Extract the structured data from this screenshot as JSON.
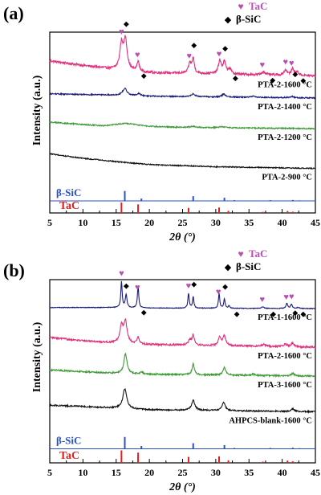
{
  "legend": {
    "tac_label": "TaC",
    "sic_label": "β-SiC",
    "tac_color": "#b94fb1",
    "sic_color": "#000000"
  },
  "colors": {
    "pink": "#e0327e",
    "navy": "#1c1c78",
    "green": "#3e9a36",
    "black": "#111111",
    "ref_blue": "#2b4fc8",
    "ref_red": "#e02020"
  },
  "chart_data": [
    {
      "panel_label": "(a)",
      "type": "line",
      "xlabel": "2θ (°)",
      "ylabel": "Intensity (a.u.)",
      "xlim": [
        5,
        45
      ],
      "xticks": [
        5,
        10,
        15,
        20,
        25,
        30,
        35,
        40,
        45
      ],
      "series": [
        {
          "name": "PTA-2-1600 °C",
          "color": "#e0327e",
          "noise": 0.018,
          "background": [
            [
              5,
              0.62
            ],
            [
              10,
              0.55
            ],
            [
              14,
              0.5
            ],
            [
              20,
              0.44
            ],
            [
              30,
              0.42
            ],
            [
              45,
              0.39
            ]
          ],
          "peaks": [
            [
              15.8,
              0.38,
              0.3
            ],
            [
              16.4,
              0.45,
              0.3
            ],
            [
              18.3,
              0.15,
              0.2
            ],
            [
              26.1,
              0.15,
              0.25
            ],
            [
              26.6,
              0.22,
              0.2
            ],
            [
              30.6,
              0.2,
              0.25
            ],
            [
              31.3,
              0.18,
              0.25
            ],
            [
              32.1,
              0.08,
              0.25
            ],
            [
              37.2,
              0.05,
              0.3
            ],
            [
              40.5,
              0.08,
              0.3
            ],
            [
              41.6,
              0.1,
              0.25
            ],
            [
              42.3,
              0.05,
              0.25
            ]
          ]
        },
        {
          "name": "PTA-2-1400 °C",
          "color": "#1c1c78",
          "noise": 0.01,
          "background": [
            [
              5,
              0.6
            ],
            [
              14,
              0.58
            ],
            [
              20,
              0.56
            ],
            [
              45,
              0.53
            ]
          ],
          "peaks": [
            [
              16.3,
              0.12,
              0.4
            ],
            [
              18.4,
              0.04,
              0.3
            ],
            [
              26.6,
              0.05,
              0.3
            ],
            [
              31.2,
              0.05,
              0.3
            ],
            [
              35.6,
              0.02,
              0.3
            ],
            [
              41.5,
              0.02,
              0.3
            ]
          ]
        },
        {
          "name": "PTA-2-1200 °C",
          "color": "#3e9a36",
          "noise": 0.01,
          "background": [
            [
              5,
              0.52
            ],
            [
              10,
              0.48
            ],
            [
              13,
              0.46
            ],
            [
              16.5,
              0.5
            ],
            [
              20,
              0.45
            ],
            [
              25,
              0.43
            ],
            [
              45,
              0.41
            ]
          ],
          "peaks": [
            [
              26.5,
              0.02,
              0.6
            ],
            [
              31.0,
              0.02,
              0.6
            ]
          ]
        },
        {
          "name": "PTA-2-900 °C",
          "color": "#111111",
          "noise": 0.009,
          "background": [
            [
              5,
              0.48
            ],
            [
              10,
              0.4
            ],
            [
              16,
              0.33
            ],
            [
              20,
              0.29
            ],
            [
              25,
              0.27
            ],
            [
              30,
              0.25
            ],
            [
              45,
              0.22
            ]
          ],
          "peaks": []
        }
      ],
      "reference": {
        "sic": {
          "label": "β-SiC",
          "positions": [
            16.3,
            18.8,
            26.6,
            31.3,
            32.8,
            38.2,
            41.6,
            42.6
          ],
          "heights": [
            0.95,
            0.22,
            0.45,
            0.3,
            0.07,
            0.07,
            0.09,
            0.05
          ]
        },
        "tac": {
          "label": "TaC",
          "positions": [
            15.8,
            18.3,
            25.9,
            30.5,
            31.9,
            37.1,
            40.8,
            41.6
          ],
          "heights": [
            1.0,
            0.82,
            0.48,
            0.52,
            0.2,
            0.1,
            0.18,
            0.12
          ]
        }
      },
      "markers": {
        "tac": [
          15.8,
          18.2,
          26.0,
          30.5,
          37.0,
          40.5,
          41.4
        ],
        "sic": [
          16.4,
          18.8,
          26.6,
          31.3,
          32.6,
          38.2,
          41.6,
          42.8
        ]
      }
    },
    {
      "panel_label": "(b)",
      "type": "line",
      "xlabel": "2θ (°)",
      "ylabel": "Intensity (a.u.)",
      "xlim": [
        5,
        45
      ],
      "xticks": [
        5,
        10,
        15,
        20,
        25,
        30,
        35,
        40,
        45
      ],
      "series": [
        {
          "name": "PTA-1-1600 °C",
          "color": "#1c1c78",
          "noise": 0.006,
          "background": [
            [
              5,
              0.42
            ],
            [
              14,
              0.42
            ],
            [
              20,
              0.41
            ],
            [
              45,
              0.4
            ]
          ],
          "peaks": [
            [
              15.8,
              0.5,
              0.12
            ],
            [
              16.5,
              0.25,
              0.15
            ],
            [
              18.3,
              0.42,
              0.12
            ],
            [
              25.9,
              0.28,
              0.12
            ],
            [
              26.6,
              0.22,
              0.12
            ],
            [
              30.5,
              0.28,
              0.12
            ],
            [
              31.3,
              0.18,
              0.12
            ],
            [
              32.0,
              0.05,
              0.12
            ],
            [
              37.1,
              0.03,
              0.2
            ],
            [
              40.7,
              0.1,
              0.15
            ],
            [
              41.4,
              0.08,
              0.15
            ],
            [
              42.4,
              0.02,
              0.2
            ]
          ]
        },
        {
          "name": "PTA-2-1600 °C",
          "color": "#e0327e",
          "noise": 0.014,
          "background": [
            [
              5,
              0.5
            ],
            [
              10,
              0.45
            ],
            [
              14,
              0.42
            ],
            [
              20,
              0.39
            ],
            [
              45,
              0.35
            ]
          ],
          "peaks": [
            [
              15.8,
              0.25,
              0.3
            ],
            [
              16.4,
              0.32,
              0.3
            ],
            [
              18.3,
              0.1,
              0.2
            ],
            [
              26.1,
              0.08,
              0.25
            ],
            [
              26.6,
              0.15,
              0.2
            ],
            [
              30.6,
              0.13,
              0.25
            ],
            [
              31.3,
              0.15,
              0.25
            ],
            [
              37.2,
              0.03,
              0.3
            ],
            [
              40.5,
              0.04,
              0.3
            ],
            [
              41.6,
              0.06,
              0.25
            ]
          ]
        },
        {
          "name": "PTA-3-1600 °C",
          "color": "#3e9a36",
          "noise": 0.012,
          "background": [
            [
              5,
              0.45
            ],
            [
              10,
              0.42
            ],
            [
              14,
              0.4
            ],
            [
              20,
              0.38
            ],
            [
              45,
              0.35
            ]
          ],
          "peaks": [
            [
              16.4,
              0.32,
              0.28
            ],
            [
              18.8,
              0.03,
              0.25
            ],
            [
              26.6,
              0.18,
              0.2
            ],
            [
              31.3,
              0.12,
              0.25
            ],
            [
              35.6,
              0.02,
              0.3
            ],
            [
              41.6,
              0.04,
              0.25
            ]
          ]
        },
        {
          "name": "AHPCS-blank-1600 °C",
          "color": "#111111",
          "noise": 0.01,
          "background": [
            [
              5,
              0.4
            ],
            [
              10,
              0.38
            ],
            [
              14,
              0.36
            ],
            [
              20,
              0.33
            ],
            [
              45,
              0.3
            ]
          ],
          "peaks": [
            [
              16.3,
              0.3,
              0.35
            ],
            [
              26.6,
              0.15,
              0.3
            ],
            [
              31.2,
              0.12,
              0.3
            ],
            [
              41.6,
              0.04,
              0.3
            ]
          ]
        }
      ],
      "reference": {
        "sic": {
          "label": "β-SiC",
          "positions": [
            16.3,
            18.8,
            26.6,
            31.3,
            32.8,
            38.2,
            41.6,
            42.6
          ],
          "heights": [
            0.95,
            0.22,
            0.45,
            0.3,
            0.07,
            0.07,
            0.09,
            0.05
          ]
        },
        "tac": {
          "label": "TaC",
          "positions": [
            15.8,
            18.3,
            25.9,
            30.5,
            31.9,
            37.1,
            40.8,
            41.6
          ],
          "heights": [
            1.0,
            0.82,
            0.48,
            0.52,
            0.2,
            0.1,
            0.18,
            0.12
          ]
        }
      },
      "markers": {
        "tac": [
          15.8,
          18.2,
          25.9,
          30.4,
          37.0,
          40.6,
          41.4
        ],
        "sic": [
          16.4,
          18.8,
          26.6,
          31.3,
          32.8,
          38.3,
          41.6,
          42.8
        ]
      }
    }
  ]
}
